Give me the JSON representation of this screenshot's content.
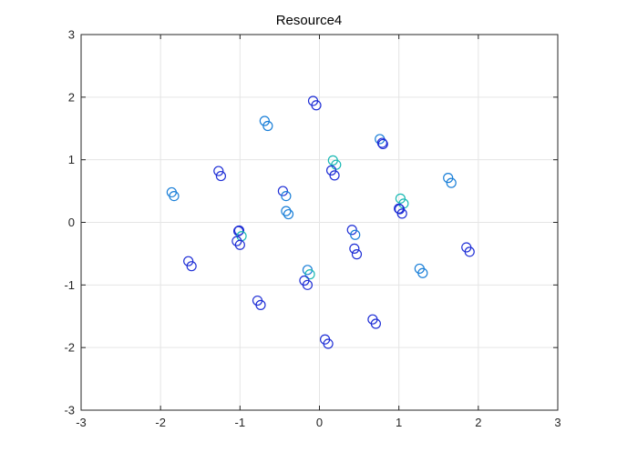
{
  "chart_data": {
    "type": "scatter",
    "title": "Resource4",
    "xlabel": "",
    "ylabel": "",
    "xlim": [
      -3,
      3
    ],
    "ylim": [
      -3,
      3
    ],
    "xticks": [
      -3,
      -2,
      -1,
      0,
      1,
      2,
      3
    ],
    "yticks": [
      -3,
      -2,
      -1,
      0,
      1,
      2,
      3
    ],
    "xtick_labels": [
      "-3",
      "-2",
      "-1",
      "0",
      "1",
      "2",
      "3"
    ],
    "ytick_labels": [
      "-3",
      "-2",
      "-1",
      "0",
      "1",
      "2",
      "3"
    ],
    "grid": true,
    "marker": "circle-open",
    "colors": {
      "dark_blue": "#1f2fd6",
      "medium_blue": "#1a7fd8",
      "teal": "#1bb9b4",
      "axis": "#262626",
      "grid": "#e5e5e5"
    },
    "points": [
      {
        "x": -0.08,
        "y": 1.94,
        "c": "dark_blue"
      },
      {
        "x": -0.04,
        "y": 1.87,
        "c": "dark_blue"
      },
      {
        "x": -0.69,
        "y": 1.62,
        "c": "medium_blue"
      },
      {
        "x": -0.65,
        "y": 1.54,
        "c": "medium_blue"
      },
      {
        "x": 0.76,
        "y": 1.33,
        "c": "medium_blue"
      },
      {
        "x": 0.8,
        "y": 1.25,
        "c": "dark_blue"
      },
      {
        "x": 0.79,
        "y": 1.27,
        "c": "dark_blue"
      },
      {
        "x": 0.17,
        "y": 0.99,
        "c": "teal"
      },
      {
        "x": 0.21,
        "y": 0.92,
        "c": "teal"
      },
      {
        "x": 0.15,
        "y": 0.83,
        "c": "dark_blue"
      },
      {
        "x": 0.19,
        "y": 0.75,
        "c": "dark_blue"
      },
      {
        "x": -1.27,
        "y": 0.82,
        "c": "dark_blue"
      },
      {
        "x": -1.24,
        "y": 0.74,
        "c": "dark_blue"
      },
      {
        "x": 1.62,
        "y": 0.71,
        "c": "medium_blue"
      },
      {
        "x": 1.66,
        "y": 0.63,
        "c": "medium_blue"
      },
      {
        "x": -1.86,
        "y": 0.48,
        "c": "medium_blue"
      },
      {
        "x": -1.83,
        "y": 0.42,
        "c": "medium_blue"
      },
      {
        "x": -0.46,
        "y": 0.5,
        "c": "dark_blue"
      },
      {
        "x": -0.42,
        "y": 0.42,
        "c": "medium_blue"
      },
      {
        "x": 1.02,
        "y": 0.38,
        "c": "teal"
      },
      {
        "x": 1.06,
        "y": 0.3,
        "c": "teal"
      },
      {
        "x": 1.0,
        "y": 0.22,
        "c": "dark_blue"
      },
      {
        "x": 1.01,
        "y": 0.21,
        "c": "dark_blue"
      },
      {
        "x": 1.04,
        "y": 0.14,
        "c": "dark_blue"
      },
      {
        "x": -0.42,
        "y": 0.18,
        "c": "medium_blue"
      },
      {
        "x": -0.39,
        "y": 0.13,
        "c": "medium_blue"
      },
      {
        "x": -1.01,
        "y": -0.13,
        "c": "dark_blue"
      },
      {
        "x": -1.02,
        "y": -0.14,
        "c": "dark_blue"
      },
      {
        "x": -0.98,
        "y": -0.22,
        "c": "teal"
      },
      {
        "x": -1.04,
        "y": -0.3,
        "c": "dark_blue"
      },
      {
        "x": -1.0,
        "y": -0.36,
        "c": "dark_blue"
      },
      {
        "x": 0.41,
        "y": -0.12,
        "c": "dark_blue"
      },
      {
        "x": 0.45,
        "y": -0.2,
        "c": "medium_blue"
      },
      {
        "x": 0.44,
        "y": -0.42,
        "c": "dark_blue"
      },
      {
        "x": 0.47,
        "y": -0.51,
        "c": "dark_blue"
      },
      {
        "x": 1.85,
        "y": -0.4,
        "c": "dark_blue"
      },
      {
        "x": 1.89,
        "y": -0.47,
        "c": "dark_blue"
      },
      {
        "x": -1.65,
        "y": -0.62,
        "c": "dark_blue"
      },
      {
        "x": -1.61,
        "y": -0.7,
        "c": "dark_blue"
      },
      {
        "x": 1.26,
        "y": -0.74,
        "c": "medium_blue"
      },
      {
        "x": 1.3,
        "y": -0.81,
        "c": "medium_blue"
      },
      {
        "x": -0.15,
        "y": -0.76,
        "c": "medium_blue"
      },
      {
        "x": -0.12,
        "y": -0.83,
        "c": "teal"
      },
      {
        "x": -0.19,
        "y": -0.93,
        "c": "dark_blue"
      },
      {
        "x": -0.15,
        "y": -1.0,
        "c": "dark_blue"
      },
      {
        "x": -0.78,
        "y": -1.25,
        "c": "dark_blue"
      },
      {
        "x": -0.74,
        "y": -1.32,
        "c": "dark_blue"
      },
      {
        "x": 0.67,
        "y": -1.55,
        "c": "dark_blue"
      },
      {
        "x": 0.71,
        "y": -1.62,
        "c": "dark_blue"
      },
      {
        "x": 0.07,
        "y": -1.87,
        "c": "dark_blue"
      },
      {
        "x": 0.11,
        "y": -1.94,
        "c": "dark_blue"
      }
    ]
  }
}
